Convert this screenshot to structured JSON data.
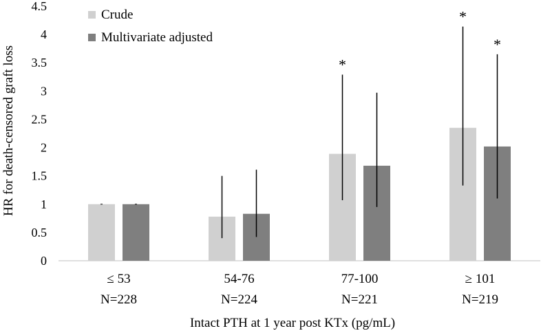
{
  "chart_data": {
    "type": "bar",
    "title": "",
    "xlabel": "Intact PTH at 1 year post KTx (pg/mL)",
    "ylabel": "HR for death-censored graft loss",
    "ylim": [
      0,
      4.5
    ],
    "yticks": [
      "0",
      "0.5",
      "1",
      "1.5",
      "2",
      "2.5",
      "3",
      "3.5",
      "4",
      "4.5"
    ],
    "ytick_values": [
      0,
      0.5,
      1,
      1.5,
      2,
      2.5,
      3,
      3.5,
      4,
      4.5
    ],
    "categories": [
      "≤ 53",
      "54-76",
      "77-100",
      "≥ 101"
    ],
    "category_n": [
      "N=228",
      "N=224",
      "N=221",
      "N=219"
    ],
    "legend_position": "top-left",
    "grid": false,
    "series": [
      {
        "name": "Crude",
        "color": "#d0d0d0",
        "values": [
          1.0,
          0.78,
          1.89,
          2.35
        ],
        "ci_low": [
          1.0,
          0.4,
          1.07,
          1.33
        ],
        "ci_high": [
          1.0,
          1.5,
          3.29,
          4.14
        ],
        "significance": [
          "",
          "",
          "*",
          "*"
        ]
      },
      {
        "name": "Multivariate adjusted",
        "color": "#7f7f7f",
        "values": [
          1.0,
          0.83,
          1.68,
          2.02
        ],
        "ci_low": [
          1.0,
          0.42,
          0.95,
          1.1
        ],
        "ci_high": [
          1.0,
          1.61,
          2.97,
          3.65
        ],
        "significance": [
          "",
          "",
          "",
          "*"
        ]
      }
    ]
  }
}
